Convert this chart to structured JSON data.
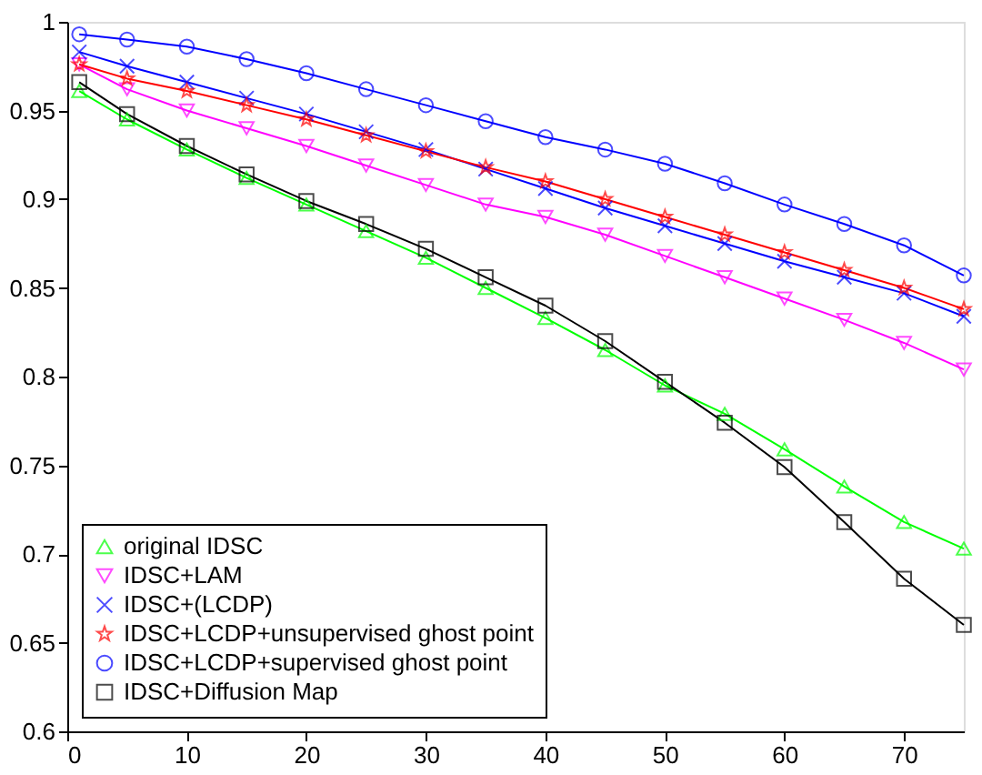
{
  "chart_data": {
    "type": "line",
    "x": [
      1,
      5,
      10,
      15,
      20,
      25,
      30,
      35,
      40,
      45,
      50,
      55,
      60,
      65,
      70,
      75
    ],
    "series": [
      {
        "name": "original IDSC",
        "color": "#00ff00",
        "marker": "triangle",
        "values": [
          0.961,
          0.945,
          0.928,
          0.912,
          0.897,
          0.882,
          0.867,
          0.85,
          0.833,
          0.815,
          0.795,
          0.779,
          0.759,
          0.738,
          0.718,
          0.703
        ]
      },
      {
        "name": "IDSC+LAM",
        "color": "#ff00ff",
        "marker": "triangle_down",
        "values": [
          0.976,
          0.962,
          0.95,
          0.94,
          0.93,
          0.919,
          0.908,
          0.897,
          0.89,
          0.88,
          0.868,
          0.856,
          0.844,
          0.832,
          0.819,
          0.804
        ]
      },
      {
        "name": "IDSC+(LCDP)",
        "color": "#0000ff",
        "marker": "cross",
        "values": [
          0.983,
          0.975,
          0.966,
          0.957,
          0.948,
          0.938,
          0.928,
          0.917,
          0.906,
          0.895,
          0.885,
          0.875,
          0.865,
          0.856,
          0.847,
          0.834
        ]
      },
      {
        "name": "IDSC+LCDP+unsupervised ghost point",
        "color": "#ff0000",
        "marker": "star",
        "values": [
          0.976,
          0.968,
          0.961,
          0.953,
          0.945,
          0.936,
          0.927,
          0.918,
          0.91,
          0.9,
          0.89,
          0.88,
          0.87,
          0.86,
          0.85,
          0.838
        ]
      },
      {
        "name": "IDSC+LCDP+supervised ghost point",
        "color": "#0000ff",
        "marker": "circle",
        "values": [
          0.993,
          0.99,
          0.986,
          0.979,
          0.971,
          0.962,
          0.953,
          0.944,
          0.935,
          0.928,
          0.92,
          0.909,
          0.897,
          0.886,
          0.874,
          0.857
        ]
      },
      {
        "name": "IDSC+Diffusion Map",
        "color": "#000000",
        "marker": "square",
        "values": [
          0.966,
          0.948,
          0.93,
          0.914,
          0.899,
          0.886,
          0.872,
          0.856,
          0.84,
          0.82,
          0.797,
          0.774,
          0.749,
          0.718,
          0.686,
          0.66
        ]
      }
    ],
    "xlim": [
      0,
      75
    ],
    "ylim": [
      0.6,
      1
    ],
    "xticks": [
      0,
      10,
      20,
      30,
      40,
      50,
      60,
      70
    ],
    "yticks": [
      0.6,
      0.65,
      0.7,
      0.75,
      0.8,
      0.85,
      0.9,
      0.95,
      1
    ],
    "grid": false,
    "legend": "bottom left",
    "line_style": "solid"
  }
}
